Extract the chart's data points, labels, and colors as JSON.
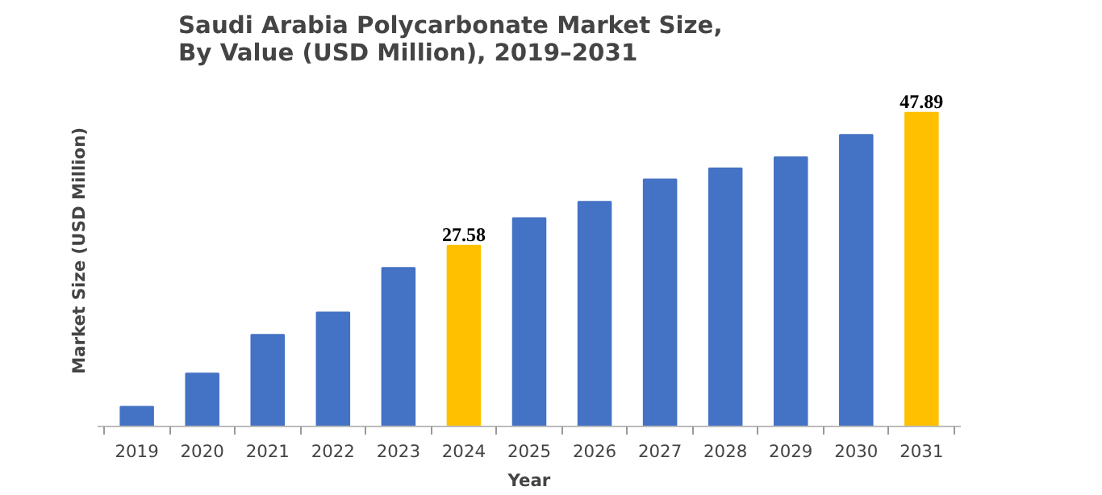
{
  "chart_data": {
    "type": "bar",
    "title": "Saudi Arabia Polycarbonate Market Size,\nBy Value (USD Million), 2019–2031",
    "xlabel": "Year",
    "ylabel": "Market Size (USD Million)",
    "categories": [
      "2019",
      "2020",
      "2021",
      "2022",
      "2023",
      "2024",
      "2025",
      "2026",
      "2027",
      "2028",
      "2029",
      "2030",
      "2031"
    ],
    "values": [
      3.0,
      8.1,
      14.0,
      17.4,
      24.2,
      27.58,
      31.8,
      34.3,
      37.7,
      39.4,
      41.1,
      44.5,
      47.89
    ],
    "colors": [
      "#4472c4",
      "#4472c4",
      "#4472c4",
      "#4472c4",
      "#4472c4",
      "#ffc000",
      "#4472c4",
      "#4472c4",
      "#4472c4",
      "#4472c4",
      "#4472c4",
      "#4472c4",
      "#ffc000"
    ],
    "value_labels": [
      null,
      null,
      null,
      null,
      null,
      "27.58",
      null,
      null,
      null,
      null,
      null,
      null,
      "47.89"
    ],
    "tick_labels": "x"
  }
}
